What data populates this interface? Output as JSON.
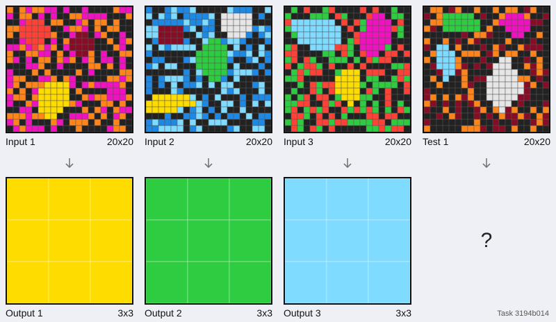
{
  "task": {
    "label": "Task 3194b014"
  },
  "colors": {
    "0": "#222222",
    "1": "#1e88e5",
    "2": "#ff4136",
    "3": "#2ecc40",
    "4": "#ffdc00",
    "5": "#aaaaaa",
    "6": "#f012be",
    "7": "#ff851b",
    "8": "#7fdbff",
    "9": "#870c25",
    "white": "#e6e6e6"
  },
  "pairs": [
    {
      "input_label": "Input 1",
      "input_size": "20x20",
      "output_label": "Output 1",
      "output_size": "3x3",
      "input_palette": [
        "#222222",
        "#ff851b",
        "#f012be"
      ],
      "input_blobs": [
        {
          "color": "#ff4136",
          "cells": [
            [
              2,
              3
            ],
            [
              2,
              4
            ],
            [
              2,
              5
            ],
            [
              3,
              2
            ],
            [
              3,
              3
            ],
            [
              3,
              4
            ],
            [
              3,
              5
            ],
            [
              3,
              6
            ],
            [
              4,
              2
            ],
            [
              4,
              3
            ],
            [
              4,
              4
            ],
            [
              4,
              5
            ],
            [
              4,
              6
            ],
            [
              5,
              3
            ],
            [
              5,
              4
            ],
            [
              5,
              5
            ],
            [
              6,
              4
            ]
          ]
        },
        {
          "color": "#870c25",
          "cells": [
            [
              4,
              11
            ],
            [
              4,
              12
            ],
            [
              5,
              10
            ],
            [
              5,
              11
            ],
            [
              5,
              12
            ],
            [
              5,
              13
            ],
            [
              6,
              10
            ],
            [
              6,
              11
            ],
            [
              6,
              12
            ],
            [
              6,
              13
            ],
            [
              7,
              11
            ],
            [
              7,
              12
            ]
          ]
        },
        {
          "color": "#ffdc00",
          "cells": [
            [
              12,
              6
            ],
            [
              12,
              7
            ],
            [
              12,
              8
            ],
            [
              12,
              9
            ],
            [
              13,
              5
            ],
            [
              13,
              6
            ],
            [
              13,
              7
            ],
            [
              13,
              8
            ],
            [
              13,
              9
            ],
            [
              14,
              5
            ],
            [
              14,
              6
            ],
            [
              14,
              7
            ],
            [
              14,
              8
            ],
            [
              14,
              9
            ],
            [
              15,
              5
            ],
            [
              15,
              6
            ],
            [
              15,
              7
            ],
            [
              15,
              8
            ],
            [
              15,
              9
            ],
            [
              16,
              5
            ],
            [
              16,
              6
            ],
            [
              16,
              7
            ],
            [
              16,
              8
            ],
            [
              17,
              6
            ],
            [
              17,
              7
            ]
          ]
        }
      ],
      "output_color": "#ffdc00"
    },
    {
      "input_label": "Input 2",
      "input_size": "20x20",
      "output_label": "Output 2",
      "output_size": "3x3",
      "input_palette": [
        "#222222",
        "#1e88e5",
        "#7fdbff"
      ],
      "input_blobs": [
        {
          "color": "#e6e6e6",
          "cells": [
            [
              1,
              12
            ],
            [
              1,
              13
            ],
            [
              1,
              14
            ],
            [
              1,
              15
            ],
            [
              1,
              16
            ],
            [
              2,
              12
            ],
            [
              2,
              13
            ],
            [
              2,
              14
            ],
            [
              2,
              15
            ],
            [
              2,
              16
            ],
            [
              3,
              12
            ],
            [
              3,
              13
            ],
            [
              3,
              14
            ],
            [
              3,
              15
            ],
            [
              3,
              16
            ],
            [
              4,
              13
            ],
            [
              4,
              14
            ],
            [
              4,
              15
            ]
          ]
        },
        {
          "color": "#870c25",
          "cells": [
            [
              3,
              2
            ],
            [
              3,
              3
            ],
            [
              3,
              4
            ],
            [
              3,
              5
            ],
            [
              4,
              2
            ],
            [
              4,
              3
            ],
            [
              4,
              4
            ],
            [
              4,
              5
            ],
            [
              5,
              2
            ],
            [
              5,
              3
            ],
            [
              5,
              4
            ],
            [
              5,
              5
            ]
          ]
        },
        {
          "color": "#2ecc40",
          "cells": [
            [
              5,
              10
            ],
            [
              5,
              11
            ],
            [
              6,
              9
            ],
            [
              6,
              10
            ],
            [
              6,
              11
            ],
            [
              6,
              12
            ],
            [
              7,
              8
            ],
            [
              7,
              9
            ],
            [
              7,
              10
            ],
            [
              7,
              11
            ],
            [
              7,
              12
            ],
            [
              8,
              8
            ],
            [
              8,
              9
            ],
            [
              8,
              10
            ],
            [
              8,
              11
            ],
            [
              8,
              12
            ],
            [
              9,
              8
            ],
            [
              9,
              9
            ],
            [
              9,
              10
            ],
            [
              9,
              11
            ],
            [
              9,
              12
            ],
            [
              10,
              9
            ],
            [
              10,
              10
            ],
            [
              10,
              11
            ],
            [
              10,
              12
            ],
            [
              11,
              10
            ],
            [
              11,
              11
            ]
          ]
        },
        {
          "color": "#ffdc00",
          "cells": [
            [
              14,
              1
            ],
            [
              14,
              2
            ],
            [
              14,
              3
            ],
            [
              14,
              4
            ],
            [
              14,
              5
            ],
            [
              14,
              6
            ],
            [
              15,
              0
            ],
            [
              15,
              1
            ],
            [
              15,
              2
            ],
            [
              15,
              3
            ],
            [
              15,
              4
            ],
            [
              15,
              5
            ],
            [
              15,
              6
            ],
            [
              15,
              7
            ],
            [
              16,
              0
            ],
            [
              16,
              1
            ],
            [
              16,
              2
            ],
            [
              16,
              3
            ],
            [
              16,
              4
            ]
          ]
        }
      ],
      "output_color": "#2ecc40"
    },
    {
      "input_label": "Input 3",
      "input_size": "20x20",
      "output_label": "Output 3",
      "output_size": "3x3",
      "input_palette": [
        "#222222",
        "#2ecc40",
        "#ff4136"
      ],
      "input_blobs": [
        {
          "color": "#7fdbff",
          "cells": [
            [
              2,
              1
            ],
            [
              2,
              2
            ],
            [
              2,
              3
            ],
            [
              2,
              4
            ],
            [
              2,
              5
            ],
            [
              2,
              6
            ],
            [
              2,
              7
            ],
            [
              3,
              1
            ],
            [
              3,
              2
            ],
            [
              3,
              3
            ],
            [
              3,
              4
            ],
            [
              3,
              5
            ],
            [
              3,
              6
            ],
            [
              3,
              7
            ],
            [
              3,
              8
            ],
            [
              4,
              2
            ],
            [
              4,
              3
            ],
            [
              4,
              4
            ],
            [
              4,
              5
            ],
            [
              4,
              6
            ],
            [
              4,
              7
            ],
            [
              4,
              8
            ],
            [
              5,
              2
            ],
            [
              5,
              3
            ],
            [
              5,
              4
            ],
            [
              5,
              5
            ],
            [
              5,
              6
            ],
            [
              5,
              7
            ],
            [
              5,
              8
            ],
            [
              6,
              4
            ],
            [
              6,
              5
            ],
            [
              6,
              6
            ],
            [
              6,
              7
            ]
          ]
        },
        {
          "color": "#f012be",
          "cells": [
            [
              1,
              14
            ],
            [
              1,
              15
            ],
            [
              2,
              13
            ],
            [
              2,
              14
            ],
            [
              2,
              15
            ],
            [
              2,
              16
            ],
            [
              3,
              13
            ],
            [
              3,
              14
            ],
            [
              3,
              15
            ],
            [
              3,
              16
            ],
            [
              4,
              12
            ],
            [
              4,
              13
            ],
            [
              4,
              14
            ],
            [
              4,
              15
            ],
            [
              4,
              16
            ],
            [
              5,
              12
            ],
            [
              5,
              13
            ],
            [
              5,
              14
            ],
            [
              5,
              15
            ],
            [
              5,
              16
            ],
            [
              6,
              12
            ],
            [
              6,
              13
            ],
            [
              6,
              14
            ],
            [
              6,
              15
            ],
            [
              7,
              13
            ],
            [
              7,
              14
            ]
          ]
        },
        {
          "color": "#ffdc00",
          "cells": [
            [
              10,
              9
            ],
            [
              10,
              10
            ],
            [
              10,
              11
            ],
            [
              11,
              8
            ],
            [
              11,
              9
            ],
            [
              11,
              10
            ],
            [
              11,
              11
            ],
            [
              12,
              8
            ],
            [
              12,
              9
            ],
            [
              12,
              10
            ],
            [
              12,
              11
            ],
            [
              13,
              8
            ],
            [
              13,
              9
            ],
            [
              13,
              10
            ],
            [
              13,
              11
            ],
            [
              14,
              9
            ],
            [
              14,
              10
            ],
            [
              14,
              11
            ],
            [
              15,
              10
            ]
          ]
        }
      ],
      "output_color": "#7fdbff"
    }
  ],
  "test": {
    "input_label": "Test 1",
    "input_size": "20x20",
    "input_palette": [
      "#222222",
      "#ff851b",
      "#870c25"
    ],
    "input_blobs": [
      {
        "color": "#2ecc40",
        "cells": [
          [
            1,
            3
          ],
          [
            1,
            4
          ],
          [
            1,
            5
          ],
          [
            1,
            6
          ],
          [
            1,
            7
          ],
          [
            2,
            3
          ],
          [
            2,
            4
          ],
          [
            2,
            5
          ],
          [
            2,
            6
          ],
          [
            2,
            7
          ],
          [
            2,
            8
          ],
          [
            3,
            3
          ],
          [
            3,
            4
          ],
          [
            3,
            5
          ],
          [
            3,
            6
          ],
          [
            3,
            7
          ],
          [
            3,
            8
          ]
        ]
      },
      {
        "color": "#f012be",
        "cells": [
          [
            1,
            13
          ],
          [
            1,
            14
          ],
          [
            1,
            15
          ],
          [
            2,
            12
          ],
          [
            2,
            13
          ],
          [
            2,
            14
          ],
          [
            2,
            15
          ],
          [
            2,
            16
          ],
          [
            3,
            13
          ],
          [
            3,
            14
          ],
          [
            3,
            15
          ],
          [
            3,
            16
          ],
          [
            4,
            14
          ],
          [
            4,
            15
          ]
        ]
      },
      {
        "color": "#7fdbff",
        "cells": [
          [
            6,
            2
          ],
          [
            6,
            3
          ],
          [
            7,
            2
          ],
          [
            7,
            3
          ],
          [
            7,
            4
          ],
          [
            8,
            2
          ],
          [
            8,
            3
          ],
          [
            8,
            4
          ],
          [
            9,
            2
          ],
          [
            9,
            3
          ],
          [
            9,
            4
          ],
          [
            10,
            3
          ],
          [
            10,
            4
          ],
          [
            11,
            3
          ]
        ]
      },
      {
        "color": "#e6e6e6",
        "cells": [
          [
            8,
            12
          ],
          [
            8,
            13
          ],
          [
            9,
            11
          ],
          [
            9,
            12
          ],
          [
            9,
            13
          ],
          [
            10,
            11
          ],
          [
            10,
            12
          ],
          [
            10,
            13
          ],
          [
            10,
            14
          ],
          [
            11,
            10
          ],
          [
            11,
            11
          ],
          [
            11,
            12
          ],
          [
            11,
            13
          ],
          [
            11,
            14
          ],
          [
            12,
            10
          ],
          [
            12,
            11
          ],
          [
            12,
            12
          ],
          [
            12,
            13
          ],
          [
            12,
            14
          ],
          [
            12,
            15
          ],
          [
            13,
            10
          ],
          [
            13,
            11
          ],
          [
            13,
            12
          ],
          [
            13,
            13
          ],
          [
            13,
            14
          ],
          [
            13,
            15
          ],
          [
            14,
            10
          ],
          [
            14,
            11
          ],
          [
            14,
            12
          ],
          [
            14,
            13
          ],
          [
            14,
            14
          ],
          [
            15,
            11
          ],
          [
            15,
            12
          ],
          [
            15,
            13
          ],
          [
            16,
            12
          ]
        ]
      }
    ],
    "output_placeholder": "?"
  },
  "arrow_glyph": "↓"
}
